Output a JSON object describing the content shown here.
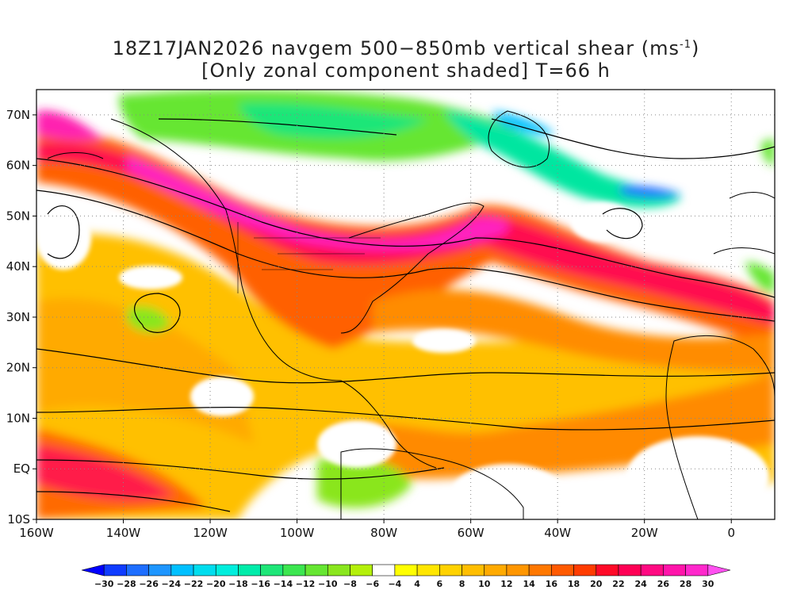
{
  "title": {
    "line1_prefix": "18Z17JAN2026 navgem 500−850mb vertical shear (ms",
    "line1_sup": "-1",
    "line1_suffix": ")",
    "line2": "[Only zonal component shaded] T=66 h"
  },
  "map": {
    "lon_range": [
      -160,
      10
    ],
    "lat_range": [
      -10,
      75
    ],
    "lat_labels": [
      {
        "lat": 70,
        "text": "70N"
      },
      {
        "lat": 60,
        "text": "60N"
      },
      {
        "lat": 50,
        "text": "50N"
      },
      {
        "lat": 40,
        "text": "40N"
      },
      {
        "lat": 30,
        "text": "30N"
      },
      {
        "lat": 20,
        "text": "20N"
      },
      {
        "lat": 10,
        "text": "10N"
      },
      {
        "lat": 0,
        "text": "EQ"
      },
      {
        "lat": -10,
        "text": "10S"
      }
    ],
    "lon_labels": [
      {
        "lon": -160,
        "text": "160W"
      },
      {
        "lon": -140,
        "text": "140W"
      },
      {
        "lon": -120,
        "text": "120W"
      },
      {
        "lon": -100,
        "text": "100W"
      },
      {
        "lon": -80,
        "text": "80W"
      },
      {
        "lon": -60,
        "text": "60W"
      },
      {
        "lon": -40,
        "text": "40W"
      },
      {
        "lon": -20,
        "text": "20W"
      },
      {
        "lon": 0,
        "text": "0"
      }
    ],
    "grid_lats": [
      -10,
      0,
      10,
      20,
      30,
      40,
      50,
      60,
      70
    ],
    "grid_lons": [
      -160,
      -140,
      -120,
      -100,
      -80,
      -60,
      -40,
      -20,
      0
    ]
  },
  "colorbar": {
    "labels": [
      "−30",
      "−28",
      "−26",
      "−24",
      "−22",
      "−20",
      "−18",
      "−16",
      "−14",
      "−12",
      "−10",
      "−8",
      "−6",
      "−4",
      "4",
      "6",
      "8",
      "10",
      "12",
      "14",
      "16",
      "18",
      "20",
      "22",
      "24",
      "26",
      "28",
      "30"
    ],
    "colors": [
      "#0000ff",
      "#0f3cff",
      "#1e6eff",
      "#1e96ff",
      "#00c0ff",
      "#00ddee",
      "#00eedd",
      "#00ecaa",
      "#1ee678",
      "#3ce650",
      "#66e632",
      "#8ae61e",
      "#b4f00a",
      "#ffffff",
      "#ffff00",
      "#ffe600",
      "#ffd200",
      "#ffbe00",
      "#ffaa00",
      "#ff9600",
      "#ff7800",
      "#ff5a00",
      "#ff3c00",
      "#ff0a28",
      "#ff0055",
      "#ff0a82",
      "#ff14aa",
      "#ff28cc",
      "#ff50f0"
    ]
  }
}
